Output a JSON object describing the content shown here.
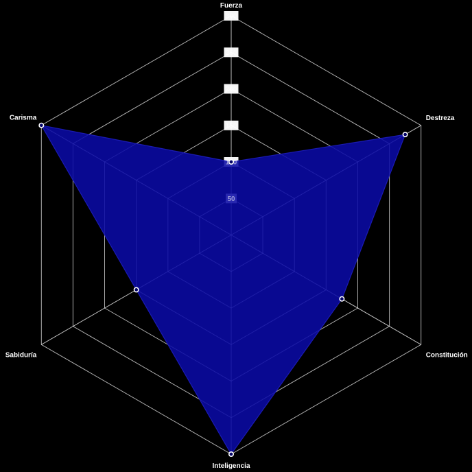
{
  "page": {
    "background_color": "#000000"
  },
  "chart_data": {
    "type": "radar",
    "title": "",
    "categories": [
      "Fuerza",
      "Destreza",
      "Constitución",
      "Inteligencia",
      "Sabiduría",
      "Carisma"
    ],
    "values": [
      100,
      275,
      175,
      300,
      150,
      300
    ],
    "rmin": 0,
    "rmax": 300,
    "tick_step": 50,
    "ticks": [
      50,
      100,
      150,
      200,
      250,
      300
    ],
    "grid": true,
    "grid_shape": "hexagon",
    "legend": false,
    "colors": {
      "background": "#000000",
      "grid_line": "#FFFFFF",
      "grid_line_opacity": 0.68,
      "spoke_opacity": 0.75,
      "tick_backdrop": "#FFFFFF",
      "fill": "#0A0AA5",
      "fill_opacity": 0.88,
      "data_border": "#1E1EBE",
      "point_fill": "#050566",
      "point_border": "#FFFFFF",
      "axis_label": "#FFFFFF",
      "tick_text": "#FFFFFF",
      "tick_text_opacity": 0.55
    }
  }
}
